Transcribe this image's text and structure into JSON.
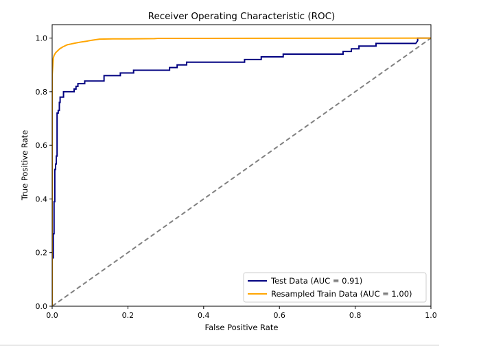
{
  "chart_data": {
    "type": "line",
    "title": "Receiver Operating Characteristic (ROC)",
    "xlabel": "False Positive Rate",
    "ylabel": "True Positive Rate",
    "xlim": [
      0.0,
      1.0
    ],
    "ylim": [
      0.0,
      1.05
    ],
    "xticks": [
      "0.0",
      "0.2",
      "0.4",
      "0.6",
      "0.8",
      "1.0"
    ],
    "yticks": [
      "0.0",
      "0.2",
      "0.4",
      "0.6",
      "0.8",
      "1.0"
    ],
    "grid": false,
    "legend_position": "lower-right",
    "series": [
      {
        "name": "Test Data (AUC = 0.91)",
        "color": "#000080",
        "style": "step",
        "points": [
          [
            0.0,
            0.0
          ],
          [
            0.0,
            0.18
          ],
          [
            0.003,
            0.18
          ],
          [
            0.003,
            0.27
          ],
          [
            0.005,
            0.27
          ],
          [
            0.005,
            0.39
          ],
          [
            0.007,
            0.39
          ],
          [
            0.007,
            0.51
          ],
          [
            0.009,
            0.51
          ],
          [
            0.009,
            0.53
          ],
          [
            0.011,
            0.53
          ],
          [
            0.011,
            0.56
          ],
          [
            0.013,
            0.56
          ],
          [
            0.013,
            0.72
          ],
          [
            0.016,
            0.72
          ],
          [
            0.016,
            0.73
          ],
          [
            0.019,
            0.73
          ],
          [
            0.019,
            0.76
          ],
          [
            0.021,
            0.76
          ],
          [
            0.021,
            0.78
          ],
          [
            0.03,
            0.78
          ],
          [
            0.03,
            0.8
          ],
          [
            0.058,
            0.8
          ],
          [
            0.058,
            0.81
          ],
          [
            0.063,
            0.81
          ],
          [
            0.063,
            0.82
          ],
          [
            0.068,
            0.82
          ],
          [
            0.068,
            0.83
          ],
          [
            0.086,
            0.83
          ],
          [
            0.086,
            0.84
          ],
          [
            0.137,
            0.84
          ],
          [
            0.137,
            0.86
          ],
          [
            0.18,
            0.86
          ],
          [
            0.18,
            0.87
          ],
          [
            0.215,
            0.87
          ],
          [
            0.215,
            0.88
          ],
          [
            0.31,
            0.88
          ],
          [
            0.31,
            0.89
          ],
          [
            0.33,
            0.89
          ],
          [
            0.33,
            0.9
          ],
          [
            0.355,
            0.9
          ],
          [
            0.355,
            0.91
          ],
          [
            0.508,
            0.91
          ],
          [
            0.508,
            0.92
          ],
          [
            0.552,
            0.92
          ],
          [
            0.552,
            0.93
          ],
          [
            0.61,
            0.93
          ],
          [
            0.61,
            0.94
          ],
          [
            0.768,
            0.94
          ],
          [
            0.768,
            0.95
          ],
          [
            0.79,
            0.95
          ],
          [
            0.79,
            0.96
          ],
          [
            0.81,
            0.96
          ],
          [
            0.81,
            0.97
          ],
          [
            0.855,
            0.97
          ],
          [
            0.855,
            0.98
          ],
          [
            0.96,
            0.98
          ],
          [
            0.965,
            0.99
          ],
          [
            0.965,
            1.0
          ],
          [
            1.0,
            1.0
          ]
        ]
      },
      {
        "name": "Resampled Train Data (AUC = 1.00)",
        "color": "#FFA500",
        "style": "line",
        "points": [
          [
            0.0,
            0.0
          ],
          [
            0.0,
            0.86
          ],
          [
            0.002,
            0.9
          ],
          [
            0.003,
            0.925
          ],
          [
            0.005,
            0.935
          ],
          [
            0.009,
            0.945
          ],
          [
            0.014,
            0.952
          ],
          [
            0.02,
            0.96
          ],
          [
            0.028,
            0.967
          ],
          [
            0.04,
            0.975
          ],
          [
            0.05,
            0.978
          ],
          [
            0.06,
            0.981
          ],
          [
            0.075,
            0.985
          ],
          [
            0.09,
            0.988
          ],
          [
            0.105,
            0.992
          ],
          [
            0.125,
            0.996
          ],
          [
            0.16,
            0.997
          ],
          [
            0.2,
            0.997
          ],
          [
            0.27,
            0.998
          ],
          [
            0.28,
            0.999
          ],
          [
            0.4,
            0.999
          ],
          [
            1.0,
            1.0
          ]
        ]
      },
      {
        "name": "",
        "color": "#808080",
        "style": "dashed",
        "points": [
          [
            0.0,
            0.0
          ],
          [
            1.0,
            1.0
          ]
        ]
      }
    ]
  }
}
